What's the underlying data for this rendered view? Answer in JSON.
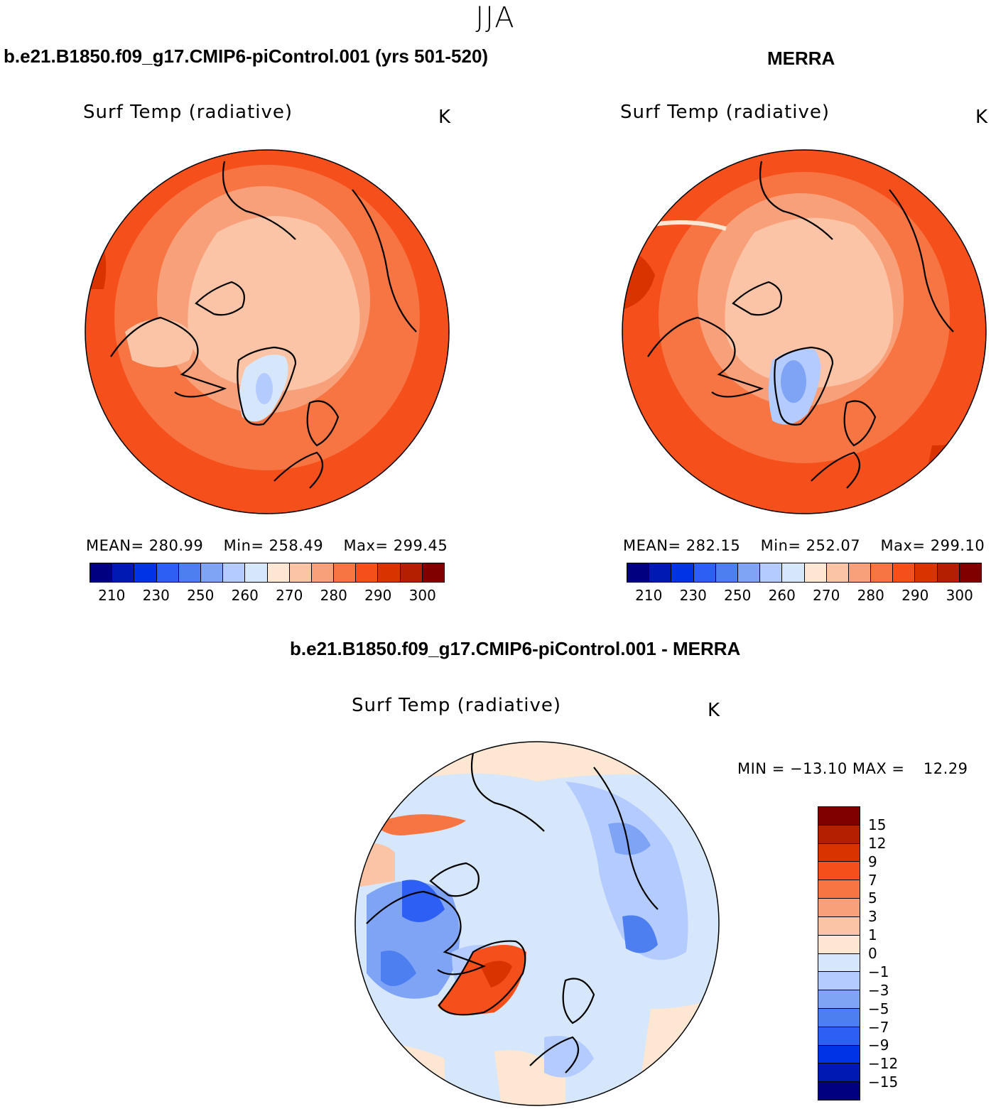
{
  "season": "JJA",
  "panels": [
    {
      "title": "b.e21.B1850.f09_g17.CMIP6-piControl.001 (yrs 501-520)",
      "variable": "Surf Temp (radiative)",
      "units": "K",
      "stats": {
        "mean_label": "MEAN=",
        "mean": "280.99",
        "min_label": "Min=",
        "min": "258.49",
        "max_label": "Max=",
        "max": "299.45"
      }
    },
    {
      "title": "MERRA",
      "variable": "Surf Temp (radiative)",
      "units": "K",
      "stats": {
        "mean_label": "MEAN=",
        "mean": "282.15",
        "min_label": "Min=",
        "min": "252.07",
        "max_label": "Max=",
        "max": "299.10"
      }
    },
    {
      "title": "b.e21.B1850.f09_g17.CMIP6-piControl.001 - MERRA",
      "variable": "Surf Temp (radiative)",
      "units": "K",
      "stats": {
        "min_label": "MIN =",
        "min": "−13.10",
        "max_label": "MAX =",
        "max": "12.29"
      }
    }
  ],
  "abs_colorbar": {
    "colors": [
      "#000080",
      "#0019b3",
      "#0033e6",
      "#2e5ff5",
      "#4d7ff0",
      "#7fa3f5",
      "#b3cbff",
      "#d6e7fc",
      "#fde6d2",
      "#fbc4a6",
      "#f8a07a",
      "#f77443",
      "#f5501c",
      "#d93300",
      "#b31f00",
      "#800000"
    ],
    "labels": [
      "210",
      "230",
      "250",
      "260",
      "270",
      "280",
      "290",
      "300"
    ]
  },
  "diff_colorbar": {
    "colors": [
      "#800000",
      "#b31f00",
      "#d93300",
      "#f5501c",
      "#f77443",
      "#f8a07a",
      "#fbc4a6",
      "#fde6d2",
      "#d6e7fc",
      "#b3cbff",
      "#7fa3f5",
      "#4d7ff0",
      "#2e5ff5",
      "#0033e6",
      "#0019b3",
      "#000080"
    ],
    "labels": [
      "15",
      "12",
      "9",
      "7",
      "5",
      "3",
      "1",
      "0",
      "−1",
      "−3",
      "−5",
      "−7",
      "−9",
      "−12",
      "−15"
    ]
  }
}
